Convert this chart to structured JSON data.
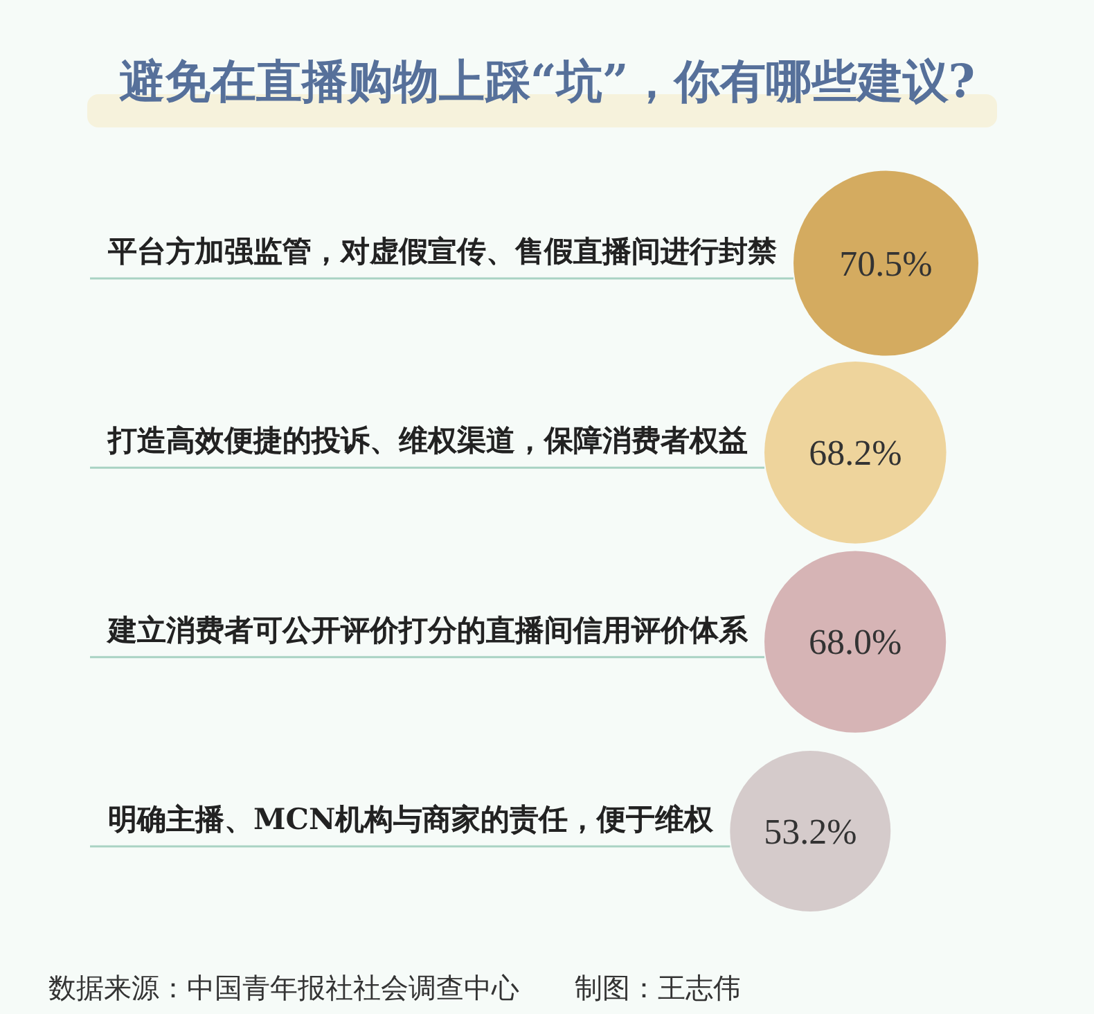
{
  "chart_data": {
    "type": "other",
    "title": "避免在直播购物上踩“坑”，你有哪些建议?",
    "categories": [
      "平台方加强监管，对虚假宣传、售假直播间进行封禁",
      "打造高效便捷的投诉、维权渠道，保障消费者权益",
      "建立消费者可公开评价打分的直播间信用评价体系",
      "明确主播、MCN机构与商家的责任，便于维权"
    ],
    "values": [
      70.5,
      68.2,
      68.0,
      53.2
    ],
    "value_labels": [
      "70.5%",
      "68.2%",
      "68.0%",
      "53.2%"
    ],
    "colors": [
      "#d4ab60",
      "#eed49c",
      "#d6b4b5",
      "#d5cbcb"
    ],
    "annotations": [
      "数据来源：中国青年报社社会调查中心",
      "制图：王志伟"
    ]
  }
}
